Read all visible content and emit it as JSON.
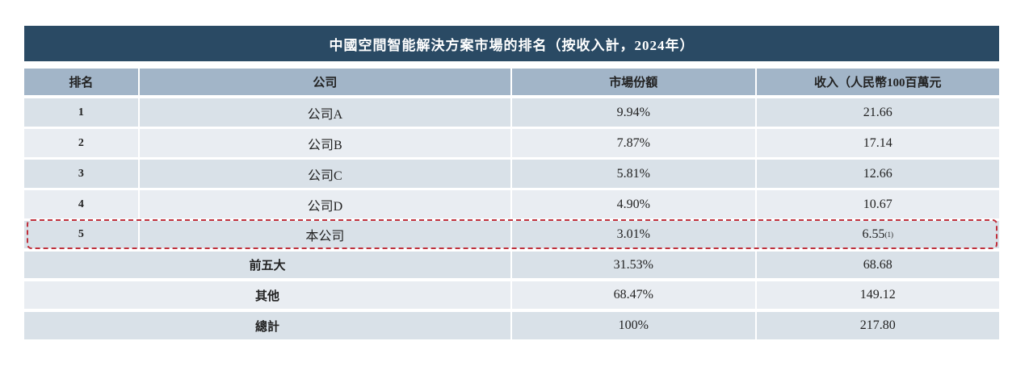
{
  "title": "中國空間智能解決方案市場的排名（按收入計，2024年）",
  "headers": [
    "排名",
    "公司",
    "市場份額",
    "收入（人民幣100百萬元"
  ],
  "rows": [
    {
      "rank": "1",
      "company": "公司A",
      "share": "9.94%",
      "revenue": "21.66",
      "note": ""
    },
    {
      "rank": "2",
      "company": "公司B",
      "share": "7.87%",
      "revenue": "17.14",
      "note": ""
    },
    {
      "rank": "3",
      "company": "公司C",
      "share": "5.81%",
      "revenue": "12.66",
      "note": ""
    },
    {
      "rank": "4",
      "company": "公司D",
      "share": "4.90%",
      "revenue": "10.67",
      "note": ""
    },
    {
      "rank": "5",
      "company": "本公司",
      "share": "3.01%",
      "revenue": "6.55",
      "note": "(1)"
    }
  ],
  "summary": [
    {
      "label": "前五大",
      "share": "31.53%",
      "revenue": "68.68"
    },
    {
      "label": "其他",
      "share": "68.47%",
      "revenue": "149.12"
    },
    {
      "label": "總計",
      "share": "100%",
      "revenue": "217.80"
    }
  ],
  "colors": {
    "title_bg": "#2a4a64",
    "header_bg": "#a2b5c8",
    "highlight": "#c0303c"
  }
}
